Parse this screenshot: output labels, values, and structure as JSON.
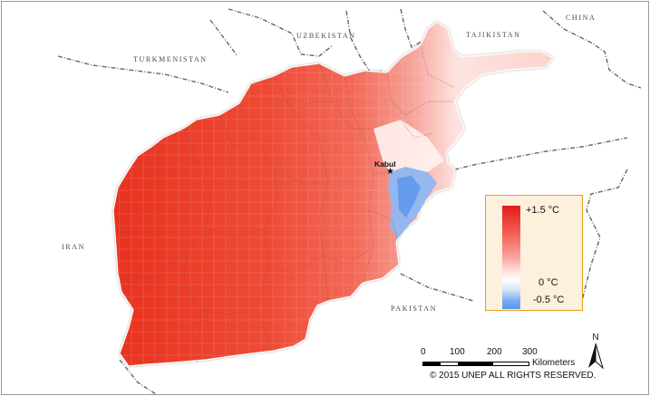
{
  "countries": {
    "turkmenistan": "TURKMENISTAN",
    "uzbekistan": "UZBEKISTAN",
    "tajikistan": "TAJIKISTAN",
    "china": "CHINA",
    "iran": "IRAN",
    "pakistan": "PAKISTAN"
  },
  "city": {
    "name": "Kabul",
    "marker_icon": "star-icon"
  },
  "legend": {
    "max_label": "+1.5 °C",
    "zero_label": "0 °C",
    "min_label": "-0.5 °C",
    "colors": {
      "warm": "#e41b1b",
      "neutral": "#ffffff",
      "cool": "#5a96ec"
    },
    "border_color": "#e6a01a"
  },
  "scale_bar": {
    "ticks": [
      "0",
      "100",
      "200",
      "300"
    ],
    "unit": "Kilometers"
  },
  "copyright": "© 2015 UNEP ALL RIGHTS RESERVED.",
  "north_arrow": {
    "label": "N",
    "icon": "north-arrow-icon"
  }
}
